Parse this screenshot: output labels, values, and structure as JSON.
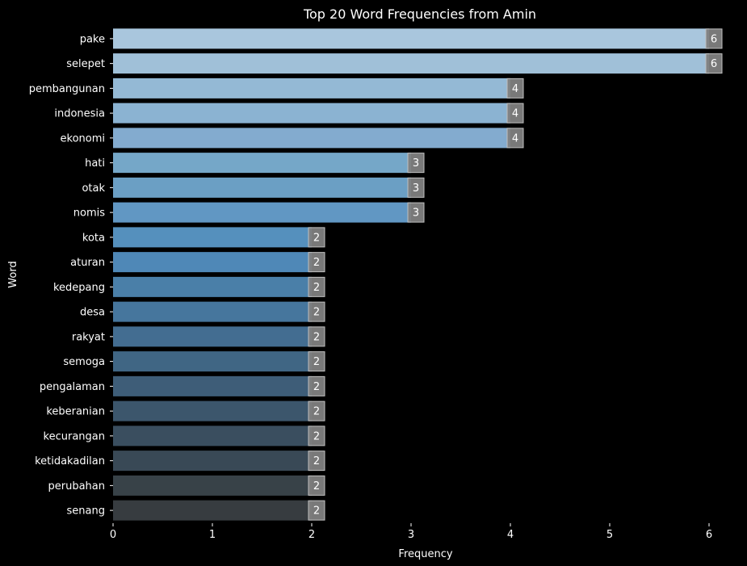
{
  "chart_data": {
    "type": "bar",
    "orientation": "horizontal",
    "title": "Top 20 Word Frequencies from Amin",
    "xlabel": "Frequency",
    "ylabel": "Word",
    "xlim": [
      0,
      6.3
    ],
    "xticks": [
      0,
      1,
      2,
      3,
      4,
      5,
      6
    ],
    "grid": false,
    "legend": "none",
    "categories": [
      "pake",
      "selepet",
      "pembangunan",
      "indonesia",
      "ekonomi",
      "hati",
      "otak",
      "nomis",
      "kota",
      "aturan",
      "kedepang",
      "desa",
      "rakyat",
      "semoga",
      "pengalaman",
      "keberanian",
      "kecurangan",
      "ketidakadilan",
      "perubahan",
      "senang"
    ],
    "values": [
      6,
      6,
      4,
      4,
      4,
      3,
      3,
      3,
      2,
      2,
      2,
      2,
      2,
      2,
      2,
      2,
      2,
      2,
      2,
      2
    ],
    "bar_colors": [
      "#a9c6dd",
      "#a0c0d8",
      "#94b9d5",
      "#8bb3d2",
      "#83abcf",
      "#75a7c8",
      "#6b9fc4",
      "#6197c3",
      "#5590bd",
      "#4f88b7",
      "#4a7fa8",
      "#46769d",
      "#436d91",
      "#406684",
      "#3e5d78",
      "#3c566c",
      "#3a4e5f",
      "#394956",
      "#384248",
      "#373c40"
    ],
    "label_box_color": "#808080",
    "background": "#000000",
    "text_color": "#ffffff"
  }
}
